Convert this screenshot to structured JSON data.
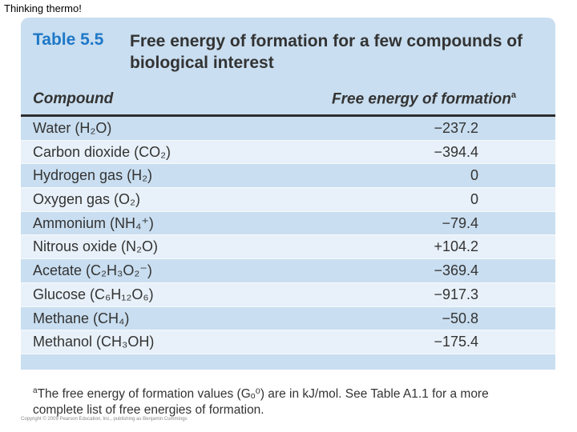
{
  "slide_title": "Thinking thermo!",
  "table_label": "Table 5.5",
  "table_caption": "Free energy of formation for a few compounds of biological interest",
  "columns": {
    "compound": "Compound",
    "energy": "Free energy of formation",
    "energy_marker": "a"
  },
  "rows": [
    {
      "name": "Water (H₂O)",
      "value": "−237.2"
    },
    {
      "name": "Carbon dioxide (CO₂)",
      "value": "−394.4"
    },
    {
      "name": "Hydrogen gas (H₂)",
      "value": "0"
    },
    {
      "name": "Oxygen gas (O₂)",
      "value": "0"
    },
    {
      "name": "Ammonium (NH₄⁺)",
      "value": "−79.4"
    },
    {
      "name": "Nitrous oxide (N₂O)",
      "value": "+104.2"
    },
    {
      "name": "Acetate (C₂H₃O₂⁻)",
      "value": "−369.4"
    },
    {
      "name": "Glucose (C₆H₁₂O₆)",
      "value": "−917.3"
    },
    {
      "name": "Methane (CH₄)",
      "value": "−50.8"
    },
    {
      "name": "Methanol (CH₃OH)",
      "value": "−175.4"
    }
  ],
  "footnote": {
    "marker": "a",
    "text": "The free energy of formation values (Gₒ⁰) are in kJ/mol. See Table A1.1 for a more complete list of free energies of formation."
  },
  "copyright": "Copyright © 2009 Pearson Education, Inc., publishing as Benjamin Cummings"
}
